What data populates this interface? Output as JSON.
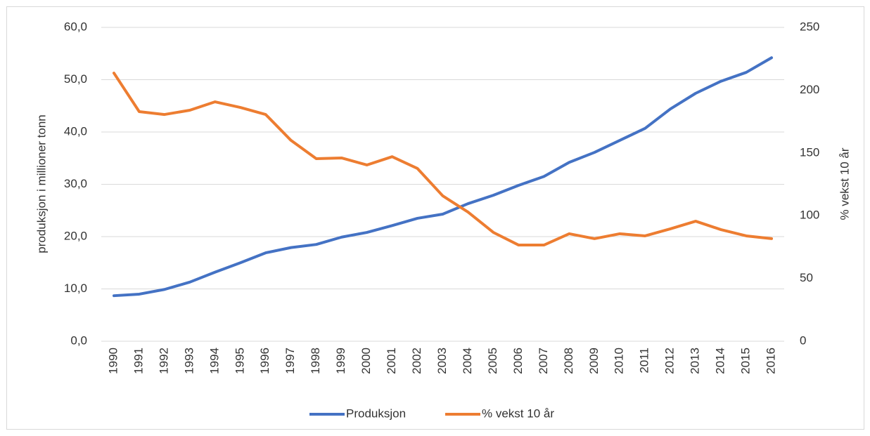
{
  "chart_data": {
    "type": "line",
    "categories": [
      "1990",
      "1991",
      "1992",
      "1993",
      "1994",
      "1995",
      "1996",
      "1997",
      "1998",
      "1999",
      "2000",
      "2001",
      "2002",
      "2003",
      "2004",
      "2005",
      "2006",
      "2007",
      "2008",
      "2009",
      "2010",
      "2011",
      "2012",
      "2013",
      "2014",
      "2015",
      "2016"
    ],
    "series": [
      {
        "name": "Produksjon",
        "color": "#4472c4",
        "axis": "y",
        "values": [
          8.7,
          9.0,
          9.9,
          11.3,
          13.2,
          15.0,
          16.9,
          17.9,
          18.5,
          19.9,
          20.8,
          22.1,
          23.5,
          24.3,
          26.3,
          27.9,
          29.8,
          31.5,
          34.2,
          36.1,
          38.4,
          40.7,
          44.4,
          47.4,
          49.7,
          51.4,
          54.2
        ]
      },
      {
        "name": "% vekst 10 år",
        "color": "#ed7d31",
        "axis": "y2",
        "values": [
          213.6,
          182.9,
          180.6,
          184.0,
          190.7,
          186.2,
          180.6,
          160.0,
          145.4,
          146.0,
          140.4,
          147.0,
          137.6,
          115.8,
          102.9,
          86.7,
          76.6,
          76.6,
          85.6,
          81.7,
          85.6,
          83.9,
          89.5,
          95.6,
          88.9,
          83.9,
          81.7
        ]
      }
    ],
    "ylabel": "produksjon i millioner tonn",
    "y2label": "% vekst 10 år",
    "ylim": [
      0,
      60
    ],
    "yticks": [
      {
        "value": 0,
        "label": "0,0"
      },
      {
        "value": 10,
        "label": "10,0"
      },
      {
        "value": 20,
        "label": "20,0"
      },
      {
        "value": 30,
        "label": "30,0"
      },
      {
        "value": 40,
        "label": "40,0"
      },
      {
        "value": 50,
        "label": "50,0"
      },
      {
        "value": 60,
        "label": "60,0"
      }
    ],
    "y2lim": [
      0,
      250
    ],
    "y2ticks": [
      0,
      50,
      100,
      150,
      200,
      250
    ],
    "grid": true,
    "legend": "bottom"
  }
}
